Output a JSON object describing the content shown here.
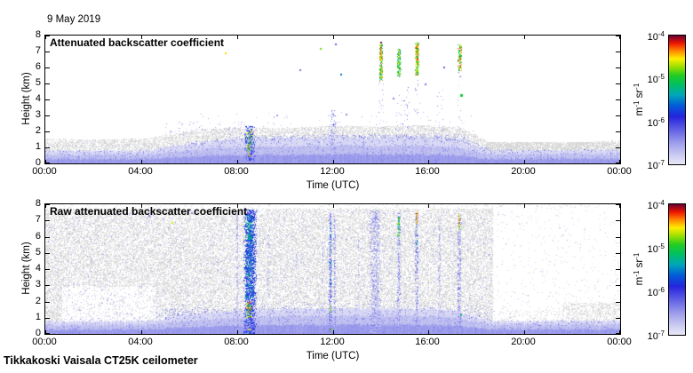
{
  "date_label": "9 May 2019",
  "footer": "Tikkakoski Vaisala CT25K ceilometer",
  "colors": {
    "background": "#ffffff",
    "axis": "#000000",
    "undetected_gray": "#d8d8d8",
    "colormap_stops": [
      [
        0.0,
        "#e8e8f8"
      ],
      [
        0.07,
        "#ccccf2"
      ],
      [
        0.16,
        "#a0a0ec"
      ],
      [
        0.27,
        "#6060e6"
      ],
      [
        0.37,
        "#2424dd"
      ],
      [
        0.46,
        "#0060d8"
      ],
      [
        0.54,
        "#00a8b8"
      ],
      [
        0.62,
        "#00c060"
      ],
      [
        0.69,
        "#22cc22"
      ],
      [
        0.76,
        "#a0e000"
      ],
      [
        0.82,
        "#ffee00"
      ],
      [
        0.88,
        "#ff8800"
      ],
      [
        0.94,
        "#ee1500"
      ],
      [
        1.0,
        "#6b0032"
      ]
    ]
  },
  "colorbar": {
    "ticks": [
      {
        "base": "10",
        "exp": "-4"
      },
      {
        "base": "10",
        "exp": "-5"
      },
      {
        "base": "10",
        "exp": "-6"
      },
      {
        "base": "10",
        "exp": "-7"
      }
    ],
    "unit_parts": [
      {
        "t": "m"
      },
      {
        "t": "-1",
        "sup": true
      },
      {
        "t": " sr"
      },
      {
        "t": "-1",
        "sup": true
      }
    ],
    "log_range": [
      -7,
      -4
    ]
  },
  "chart_data": [
    {
      "type": "heatmap",
      "title": "Attenuated backscatter coefficient",
      "xlabel": "Time (UTC)",
      "ylabel": "Height (km)",
      "x_ticks": [
        "00:00",
        "04:00",
        "08:00",
        "12:00",
        "16:00",
        "20:00",
        "00:00"
      ],
      "x_range_hours": [
        0,
        24
      ],
      "y_ticks": [
        "0",
        "1",
        "2",
        "3",
        "4",
        "5",
        "6",
        "7",
        "8"
      ],
      "y_range_km": [
        0,
        8
      ],
      "colorbar_range_log10": [
        -7,
        -4
      ],
      "seed": 11,
      "surface": {
        "layers": [
          {
            "top_km": 0.28,
            "log": -6.5
          },
          {
            "top_km": 0.55,
            "log": -6.72
          },
          {
            "top_km": 0.78,
            "log": -6.88
          }
        ],
        "thickness_curve": [
          [
            0,
            1
          ],
          [
            4.4,
            1
          ],
          [
            5.5,
            1.35
          ],
          [
            7,
            1.7
          ],
          [
            9,
            1.9
          ],
          [
            12,
            2.0
          ],
          [
            15,
            2.0
          ],
          [
            17,
            1.9
          ],
          [
            18,
            1.3
          ],
          [
            18.6,
            1.0
          ],
          [
            24,
            1.05
          ]
        ]
      },
      "gray": {
        "base": 0.5,
        "top_curve": [
          [
            0,
            1.55
          ],
          [
            2,
            1.5
          ],
          [
            4.3,
            1.55
          ],
          [
            5,
            1.8
          ],
          [
            6.5,
            2.1
          ],
          [
            8,
            2.25
          ],
          [
            10,
            2.2
          ],
          [
            12,
            2.35
          ],
          [
            14,
            2.3
          ],
          [
            16,
            2.4
          ],
          [
            17.5,
            2.2
          ],
          [
            18.5,
            1.35
          ],
          [
            19.5,
            1.25
          ],
          [
            22,
            1.3
          ],
          [
            24,
            1.45
          ]
        ],
        "rects": [
          {
            "t0": 18.4,
            "t1": 24,
            "h0": 0.78,
            "h1": 1.32,
            "p": 0.75
          }
        ]
      },
      "blue": {
        "top_curve": [
          [
            0,
            0.8
          ],
          [
            4.3,
            0.8
          ],
          [
            5,
            1.05
          ],
          [
            6,
            1.35
          ],
          [
            7,
            1.55
          ],
          [
            8,
            1.75
          ],
          [
            10,
            1.8
          ],
          [
            12,
            1.9
          ],
          [
            14,
            1.85
          ],
          [
            16,
            1.95
          ],
          [
            17.5,
            1.8
          ],
          [
            18.3,
            1.1
          ],
          [
            19,
            0.9
          ],
          [
            21,
            0.85
          ],
          [
            24,
            0.9
          ]
        ],
        "rects": [
          {
            "t0": 0,
            "t1": 4.5,
            "h0": 0.8,
            "h1": 1.4,
            "p": 0.04,
            "lmin": -7,
            "lmax": -6.6
          },
          {
            "t0": 5,
            "t1": 8.3,
            "h0": 1.8,
            "h1": 2.6,
            "p": 0.05,
            "lmin": -6.9,
            "lmax": -6.4
          },
          {
            "t0": 6.5,
            "t1": 18,
            "h0": 1.9,
            "h1": 3.2,
            "p": 0.012,
            "lmin": -6.9,
            "lmax": -6.5
          },
          {
            "t0": 11.8,
            "t1": 12.3,
            "h0": 1.9,
            "h1": 3.3,
            "p": 0.05,
            "lmin": -6.9,
            "lmax": -6.3
          },
          {
            "t0": 13.9,
            "t1": 14.15,
            "h0": 2.0,
            "h1": 5.1,
            "p": 0.06,
            "lmin": -6.8,
            "lmax": -6.2
          },
          {
            "t0": 14.65,
            "t1": 14.9,
            "h0": 2.0,
            "h1": 4.4,
            "p": 0.04,
            "lmin": -6.8,
            "lmax": -6.3
          },
          {
            "t0": 15.4,
            "t1": 15.65,
            "h0": 3.0,
            "h1": 5.5,
            "p": 0.07,
            "lmin": -6.8,
            "lmax": -6.2
          },
          {
            "t0": 16.35,
            "t1": 16.6,
            "h0": 2.0,
            "h1": 4.6,
            "p": 0.05,
            "lmin": -6.8,
            "lmax": -6.3
          },
          {
            "t0": 17.2,
            "t1": 17.45,
            "h0": 2.0,
            "h1": 5.7,
            "p": 0.05,
            "lmin": -6.8,
            "lmax": -6.3
          }
        ]
      },
      "streaks": [
        {
          "t0": 8.3,
          "t1": 8.78,
          "h0": 0.25,
          "h1": 2.3,
          "p": 0.5,
          "lmin": -6.5,
          "lmax": -5.7
        },
        {
          "t0": 8.38,
          "t1": 8.68,
          "h0": 0.8,
          "h1": 2.05,
          "p": 0.4,
          "lmin": -5.4,
          "lmax": -4.3
        },
        {
          "t0": 8.45,
          "t1": 8.6,
          "h0": 0.45,
          "h1": 0.95,
          "p": 0.35,
          "lmin": -5.0,
          "lmax": -4.3
        },
        {
          "t0": 11.9,
          "t1": 12.18,
          "h0": 0.5,
          "h1": 3.3,
          "p": 0.25,
          "lmin": -6.8,
          "lmax": -6.1
        },
        {
          "t0": 13.93,
          "t1": 14.1,
          "h0": 5.25,
          "h1": 7.4,
          "p": 0.85,
          "lmin": -5.4,
          "lmax": -4.25
        },
        {
          "t0": 13.96,
          "t1": 14.07,
          "h0": 6.3,
          "h1": 7.3,
          "p": 0.6,
          "lmin": -4.6,
          "lmax": -4.1
        },
        {
          "t0": 14.68,
          "t1": 14.86,
          "h0": 5.45,
          "h1": 7.15,
          "p": 0.8,
          "lmin": -5.5,
          "lmax": -4.5
        },
        {
          "t0": 15.43,
          "t1": 15.62,
          "h0": 5.6,
          "h1": 7.55,
          "p": 0.85,
          "lmin": -5.3,
          "lmax": -4.3
        },
        {
          "t0": 15.47,
          "t1": 15.58,
          "h0": 6.5,
          "h1": 7.45,
          "p": 0.6,
          "lmin": -4.5,
          "lmax": -4.05
        },
        {
          "t0": 17.22,
          "t1": 17.4,
          "h0": 5.85,
          "h1": 7.4,
          "p": 0.85,
          "lmin": -5.3,
          "lmax": -4.15
        },
        {
          "t0": 14.95,
          "t1": 15.2,
          "h0": 2.0,
          "h1": 4.8,
          "p": 0.12,
          "lmin": -6.8,
          "lmax": -6.2
        }
      ],
      "dots": [
        {
          "t": 7.5,
          "h": 6.92,
          "log": -4.5,
          "s": 2
        },
        {
          "t": 11.45,
          "h": 7.2,
          "log": -4.8,
          "s": 2
        },
        {
          "t": 13.98,
          "h": 7.62,
          "log": -4.02,
          "s": 2
        },
        {
          "t": 12.08,
          "h": 7.5,
          "log": -6.2,
          "s": 2
        },
        {
          "t": 12.3,
          "h": 5.6,
          "log": -5.6,
          "s": 2
        },
        {
          "t": 10.6,
          "h": 5.9,
          "log": -6.3,
          "s": 2
        },
        {
          "t": 12.55,
          "h": 3.1,
          "log": -6.4,
          "s": 2
        },
        {
          "t": 9.65,
          "h": 3.05,
          "log": -6.5,
          "s": 2
        },
        {
          "t": 17.32,
          "h": 4.35,
          "log": -5.0,
          "s": 3
        },
        {
          "t": 16.6,
          "h": 6.05,
          "log": -6.2,
          "s": 2
        },
        {
          "t": 14.5,
          "h": 4.1,
          "log": -6.35,
          "s": 2
        },
        {
          "t": 15.85,
          "h": 5.0,
          "log": -6.3,
          "s": 2
        }
      ]
    },
    {
      "type": "heatmap",
      "title": "Raw attenuated backscatter coefficient",
      "xlabel": "Time (UTC)",
      "ylabel": "Height (km)",
      "x_ticks": [
        "00:00",
        "04:00",
        "08:00",
        "12:00",
        "16:00",
        "20:00",
        "00:00"
      ],
      "x_range_hours": [
        0,
        24
      ],
      "y_ticks": [
        "0",
        "1",
        "2",
        "3",
        "4",
        "5",
        "6",
        "7",
        "8"
      ],
      "y_range_km": [
        0,
        8
      ],
      "colorbar_range_log10": [
        -7,
        -4
      ],
      "seed": 47,
      "surface": {
        "layers": [
          {
            "top_km": 0.28,
            "log": -6.5
          },
          {
            "top_km": 0.55,
            "log": -6.72
          },
          {
            "top_km": 0.78,
            "log": -6.88
          }
        ],
        "thickness_curve": [
          [
            0,
            1
          ],
          [
            4.4,
            1
          ],
          [
            5.5,
            1.35
          ],
          [
            7,
            1.7
          ],
          [
            9,
            1.9
          ],
          [
            12,
            2.0
          ],
          [
            15,
            2.0
          ],
          [
            17,
            1.9
          ],
          [
            18,
            1.3
          ],
          [
            18.6,
            1.0
          ],
          [
            24,
            1.05
          ]
        ]
      },
      "gray": {
        "base": 0,
        "top_curve": null,
        "rects": [
          {
            "t0": 0,
            "t1": 18.7,
            "h0": 0.75,
            "h1": 7.7,
            "p": 0.42
          },
          {
            "t0": 0,
            "t1": 0.7,
            "h0": 0.7,
            "h1": 4.5,
            "p": 0.5
          },
          {
            "t0": 0.7,
            "t1": 4.6,
            "h0": 0.7,
            "h1": 2.9,
            "p": 0.1
          },
          {
            "t0": 18.7,
            "t1": 24,
            "h0": 0.7,
            "h1": 7.7,
            "p": 0.018
          },
          {
            "t0": 18.7,
            "t1": 21.6,
            "h0": 0.7,
            "h1": 1.5,
            "p": 0.12
          },
          {
            "t0": 21.6,
            "t1": 24,
            "h0": 0.7,
            "h1": 1.9,
            "p": 0.38
          },
          {
            "t0": 0,
            "t1": 24,
            "h0": 7.72,
            "h1": 8,
            "p": 0.05
          }
        ]
      },
      "blue": {
        "top_curve": null,
        "rects": [
          {
            "t0": 0,
            "t1": 18.7,
            "h0": 0.75,
            "h1": 7.6,
            "p": 0.045,
            "lmin": -7,
            "lmax": -6.45
          },
          {
            "t0": 0,
            "t1": 4.6,
            "h0": 0,
            "h1": 1.4,
            "p": 0.15,
            "grad": true,
            "lmin": -7,
            "lmax": -6.5
          },
          {
            "t0": 4.6,
            "t1": 18.7,
            "h0": 0,
            "h1": 2.0,
            "p": 0.3,
            "grad": true,
            "lmin": -6.9,
            "lmax": -6.3
          },
          {
            "t0": 5,
            "t1": 14,
            "h0": 0.8,
            "h1": 1.6,
            "p": 0.12,
            "lmin": -6.8,
            "lmax": -6.3
          },
          {
            "t0": 18.7,
            "t1": 24,
            "h0": 0,
            "h1": 1.1,
            "p": 0.2,
            "grad": true,
            "lmin": -7,
            "lmax": -6.5
          },
          {
            "t0": 18.7,
            "t1": 24,
            "h0": 1.1,
            "h1": 7.6,
            "p": 0.007,
            "lmin": -7,
            "lmax": -6.6
          }
        ]
      },
      "streaks": [
        {
          "t0": 7.96,
          "t1": 8.06,
          "h0": 0.4,
          "h1": 7.3,
          "p": 0.45,
          "lmin": -6.85,
          "lmax": -6.3
        },
        {
          "t0": 8.28,
          "t1": 8.84,
          "h0": 0.1,
          "h1": 7.65,
          "p": 0.75,
          "lmin": -6.4,
          "lmax": -5.6
        },
        {
          "t0": 8.33,
          "t1": 8.72,
          "h0": 2.2,
          "h1": 7.3,
          "p": 0.45,
          "lmin": -5.9,
          "lmax": -5.2
        },
        {
          "t0": 8.38,
          "t1": 8.64,
          "h0": 1.05,
          "h1": 1.95,
          "p": 0.5,
          "lmin": -5.1,
          "lmax": -4.2
        },
        {
          "t0": 8.42,
          "t1": 8.6,
          "h0": 5.9,
          "h1": 7.0,
          "p": 0.35,
          "lmin": -5.5,
          "lmax": -5.0
        },
        {
          "t0": 9.28,
          "t1": 9.37,
          "h0": 0.4,
          "h1": 6.6,
          "p": 0.3,
          "lmin": -6.85,
          "lmax": -6.4
        },
        {
          "t0": 10.45,
          "t1": 10.53,
          "h0": 0.4,
          "h1": 5.6,
          "p": 0.22,
          "lmin": -6.85,
          "lmax": -6.5
        },
        {
          "t0": 11.55,
          "t1": 11.63,
          "h0": 0.4,
          "h1": 6.8,
          "p": 0.28,
          "lmin": -6.85,
          "lmax": -6.45
        },
        {
          "t0": 11.84,
          "t1": 11.97,
          "h0": 0.2,
          "h1": 7.55,
          "p": 0.55,
          "lmin": -6.7,
          "lmax": -6.0
        },
        {
          "t0": 11.87,
          "t1": 11.95,
          "h0": 2.8,
          "h1": 7.0,
          "p": 0.25,
          "lmin": -5.9,
          "lmax": -5.3
        },
        {
          "t0": 11.88,
          "t1": 11.94,
          "h0": 1.35,
          "h1": 1.7,
          "p": 0.5,
          "lmin": -5.0,
          "lmax": -4.5
        },
        {
          "t0": 12.02,
          "t1": 12.14,
          "h0": 0.3,
          "h1": 7.3,
          "p": 0.4,
          "lmin": -6.8,
          "lmax": -6.25
        },
        {
          "t0": 13.05,
          "t1": 13.12,
          "h0": 0.8,
          "h1": 6.0,
          "p": 0.2,
          "lmin": -6.85,
          "lmax": -6.5
        },
        {
          "t0": 13.52,
          "t1": 14.02,
          "h0": 0.1,
          "h1": 7.6,
          "p": 0.5,
          "lmin": -6.85,
          "lmax": -6.3
        },
        {
          "t0": 14.68,
          "t1": 14.84,
          "h0": 0.4,
          "h1": 7.5,
          "p": 0.5,
          "lmin": -6.8,
          "lmax": -6.2
        },
        {
          "t0": 14.7,
          "t1": 14.8,
          "h0": 6.1,
          "h1": 7.2,
          "p": 0.65,
          "lmin": -5.4,
          "lmax": -4.5
        },
        {
          "t0": 15.43,
          "t1": 15.59,
          "h0": 0.4,
          "h1": 7.6,
          "p": 0.5,
          "lmin": -6.8,
          "lmax": -6.2
        },
        {
          "t0": 15.46,
          "t1": 15.56,
          "h0": 6.85,
          "h1": 7.55,
          "p": 0.7,
          "lmin": -4.6,
          "lmax": -4.05
        },
        {
          "t0": 15.46,
          "t1": 15.55,
          "h0": 5.5,
          "h1": 6.6,
          "p": 0.3,
          "lmin": -5.8,
          "lmax": -5.2
        },
        {
          "t0": 16.4,
          "t1": 16.52,
          "h0": 0.4,
          "h1": 7.3,
          "p": 0.38,
          "lmin": -6.85,
          "lmax": -6.4
        },
        {
          "t0": 17.2,
          "t1": 17.37,
          "h0": 0.4,
          "h1": 7.45,
          "p": 0.5,
          "lmin": -6.8,
          "lmax": -6.2
        },
        {
          "t0": 17.23,
          "t1": 17.33,
          "h0": 6.45,
          "h1": 7.35,
          "p": 0.65,
          "lmin": -5.0,
          "lmax": -4.2
        }
      ],
      "dots": [
        {
          "t": 5.25,
          "h": 6.9,
          "log": -4.6,
          "s": 2
        },
        {
          "t": 4.3,
          "h": 7.35,
          "log": -6.3,
          "s": 2
        },
        {
          "t": 6.1,
          "h": 7.5,
          "log": -6.4,
          "s": 2
        },
        {
          "t": 17.32,
          "h": 1.2,
          "log": -5.2,
          "s": 2
        },
        {
          "t": 11.9,
          "h": 0.35,
          "log": -4.8,
          "s": 2
        },
        {
          "t": 8.5,
          "h": 0.35,
          "log": -4.5,
          "s": 2
        }
      ]
    }
  ]
}
